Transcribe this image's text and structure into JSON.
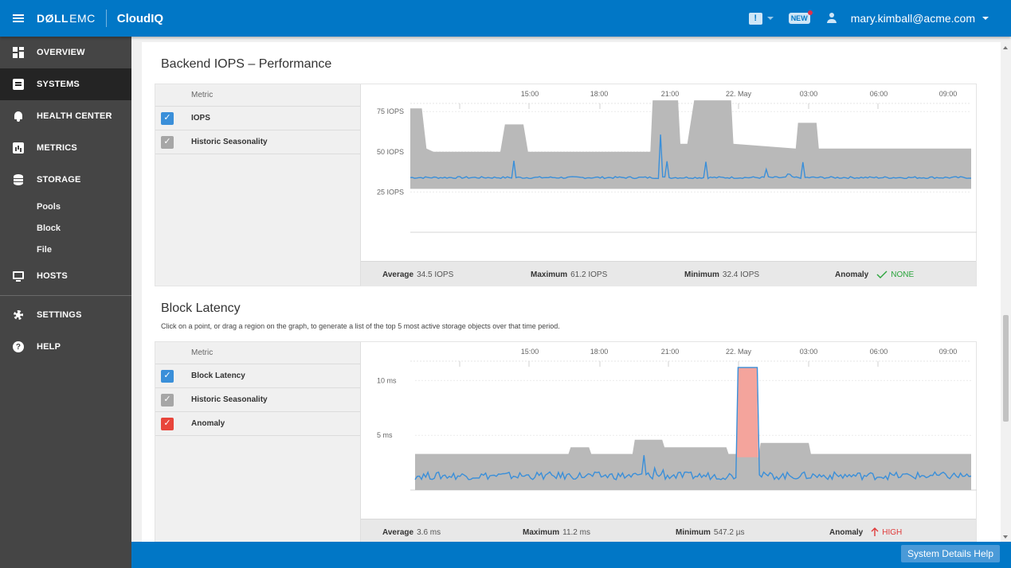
{
  "header": {
    "brand_dell": "DØLL",
    "brand_emc": "EMC",
    "app_name": "CloudIQ",
    "new_badge": "NEW",
    "message_icon_label": "!",
    "user_email": "mary.kimball@acme.com"
  },
  "sidebar": {
    "items": [
      {
        "label": "OVERVIEW",
        "icon": "grid-icon"
      },
      {
        "label": "SYSTEMS",
        "icon": "systems-icon"
      },
      {
        "label": "HEALTH CENTER",
        "icon": "bell-icon"
      },
      {
        "label": "METRICS",
        "icon": "metrics-icon"
      },
      {
        "label": "STORAGE",
        "icon": "storage-icon"
      },
      {
        "label": "HOSTS",
        "icon": "monitor-icon"
      },
      {
        "label": "SETTINGS",
        "icon": "gear-icon"
      },
      {
        "label": "HELP",
        "icon": "help-icon"
      }
    ],
    "storage_sub": [
      "Pools",
      "Block",
      "File"
    ],
    "help_glyph": "?"
  },
  "iops_panel": {
    "title": "Backend IOPS – Performance",
    "metric_header": "Metric",
    "metrics": [
      "IOPS",
      "Historic Seasonality"
    ],
    "stats": {
      "average_label": "Average",
      "average_value": "34.5 IOPS",
      "maximum_label": "Maximum",
      "maximum_value": "61.2 IOPS",
      "minimum_label": "Minimum",
      "minimum_value": "32.4 IOPS",
      "anomaly_label": "Anomaly",
      "anomaly_value": "NONE"
    }
  },
  "latency_panel": {
    "title": "Block Latency",
    "subtitle": "Click on a point, or drag a region on the graph, to generate a list of the top 5 most active storage objects over that time period.",
    "metric_header": "Metric",
    "metrics": [
      "Block Latency",
      "Historic Seasonality",
      "Anomaly"
    ],
    "stats": {
      "average_label": "Average",
      "average_value": "3.6 ms",
      "maximum_label": "Maximum",
      "maximum_value": "11.2 ms",
      "minimum_label": "Minimum",
      "minimum_value": "547.2 µs",
      "anomaly_label": "Anomaly",
      "anomaly_value": "HIGH"
    }
  },
  "footer": {
    "help_button": "System Details Help"
  },
  "colors": {
    "brand_blue": "#0177c6",
    "sidebar_bg": "#454545",
    "series_line": "#3a8fd9",
    "seasonality_band": "#b9b9b9",
    "anomaly_fill": "#f4a49c",
    "anomaly_none": "#2aa43c",
    "anomaly_high": "#e03a3a"
  },
  "chart_data": [
    {
      "type": "area",
      "name": "Backend IOPS",
      "x_ticks": [
        "15:00",
        "18:00",
        "21:00",
        "22. May",
        "03:00",
        "06:00",
        "09:00"
      ],
      "y_ticks": [
        {
          "value": 75,
          "label": "75 IOPS"
        },
        {
          "value": 50,
          "label": "50 IOPS"
        },
        {
          "value": 25,
          "label": "25 IOPS"
        }
      ],
      "ylim": [
        0,
        85
      ],
      "x_range": [
        10.5,
        34.8
      ],
      "series": [
        {
          "name": "IOPS",
          "color": "#3a8fd9",
          "base": 34,
          "noise": 0.6,
          "spikes": [
            [
              15.0,
              45
            ],
            [
              21.35,
              61
            ],
            [
              21.6,
              45
            ],
            [
              23.3,
              44
            ],
            [
              25.9,
              40
            ],
            [
              26.9,
              38
            ],
            [
              27.5,
              44
            ]
          ]
        },
        {
          "name": "Historic Seasonality",
          "color": "#b9b9b9",
          "upper": [
            [
              10.5,
              77
            ],
            [
              11.0,
              77
            ],
            [
              11.2,
              52
            ],
            [
              11.5,
              50
            ],
            [
              14.4,
              50
            ],
            [
              14.6,
              67
            ],
            [
              15.4,
              67
            ],
            [
              15.6,
              50
            ],
            [
              20.9,
              50
            ],
            [
              21.0,
              82
            ],
            [
              22.1,
              82
            ],
            [
              22.2,
              55
            ],
            [
              22.5,
              55
            ],
            [
              22.8,
              82
            ],
            [
              24.4,
              82
            ],
            [
              24.5,
              55
            ],
            [
              27.2,
              52
            ],
            [
              27.3,
              68
            ],
            [
              28.1,
              68
            ],
            [
              28.2,
              52
            ],
            [
              34.8,
              52
            ]
          ],
          "lower": [
            [
              10.5,
              27
            ],
            [
              34.8,
              27
            ]
          ]
        }
      ]
    },
    {
      "type": "area",
      "name": "Block Latency",
      "x_ticks": [
        "15:00",
        "18:00",
        "21:00",
        "22. May",
        "03:00",
        "06:00",
        "09:00"
      ],
      "y_ticks": [
        {
          "value": 10,
          "label": "10 ms"
        },
        {
          "value": 5,
          "label": "5 ms"
        }
      ],
      "ylim": [
        0,
        12.5
      ],
      "x_range": [
        10.5,
        34.8
      ],
      "series": [
        {
          "name": "Block Latency",
          "color": "#3a8fd9",
          "base": 1.3,
          "noise": 0.35,
          "spikes": [
            [
              20.5,
              3.2
            ],
            [
              21.0,
              3.3
            ],
            [
              21.3,
              3.5
            ]
          ],
          "anomaly": {
            "start": 24.55,
            "end": 25.5,
            "value": 11.2,
            "baseline": 3.0,
            "color": "#f4a49c"
          }
        },
        {
          "name": "Historic Seasonality",
          "color": "#b9b9b9",
          "upper": [
            [
              10.5,
              3.3
            ],
            [
              17.2,
              3.3
            ],
            [
              17.3,
              3.9
            ],
            [
              18.1,
              3.9
            ],
            [
              18.2,
              3.3
            ],
            [
              20.0,
              3.3
            ],
            [
              20.1,
              4.6
            ],
            [
              21.3,
              4.6
            ],
            [
              21.4,
              3.9
            ],
            [
              24.1,
              3.9
            ],
            [
              24.2,
              3.3
            ],
            [
              24.7,
              3.3
            ],
            [
              25.5,
              3.0
            ],
            [
              25.6,
              4.3
            ],
            [
              27.7,
              4.3
            ],
            [
              27.8,
              3.3
            ],
            [
              34.8,
              3.3
            ]
          ],
          "lower": [
            [
              10.5,
              0.0
            ],
            [
              34.8,
              0.0
            ]
          ]
        }
      ]
    }
  ]
}
